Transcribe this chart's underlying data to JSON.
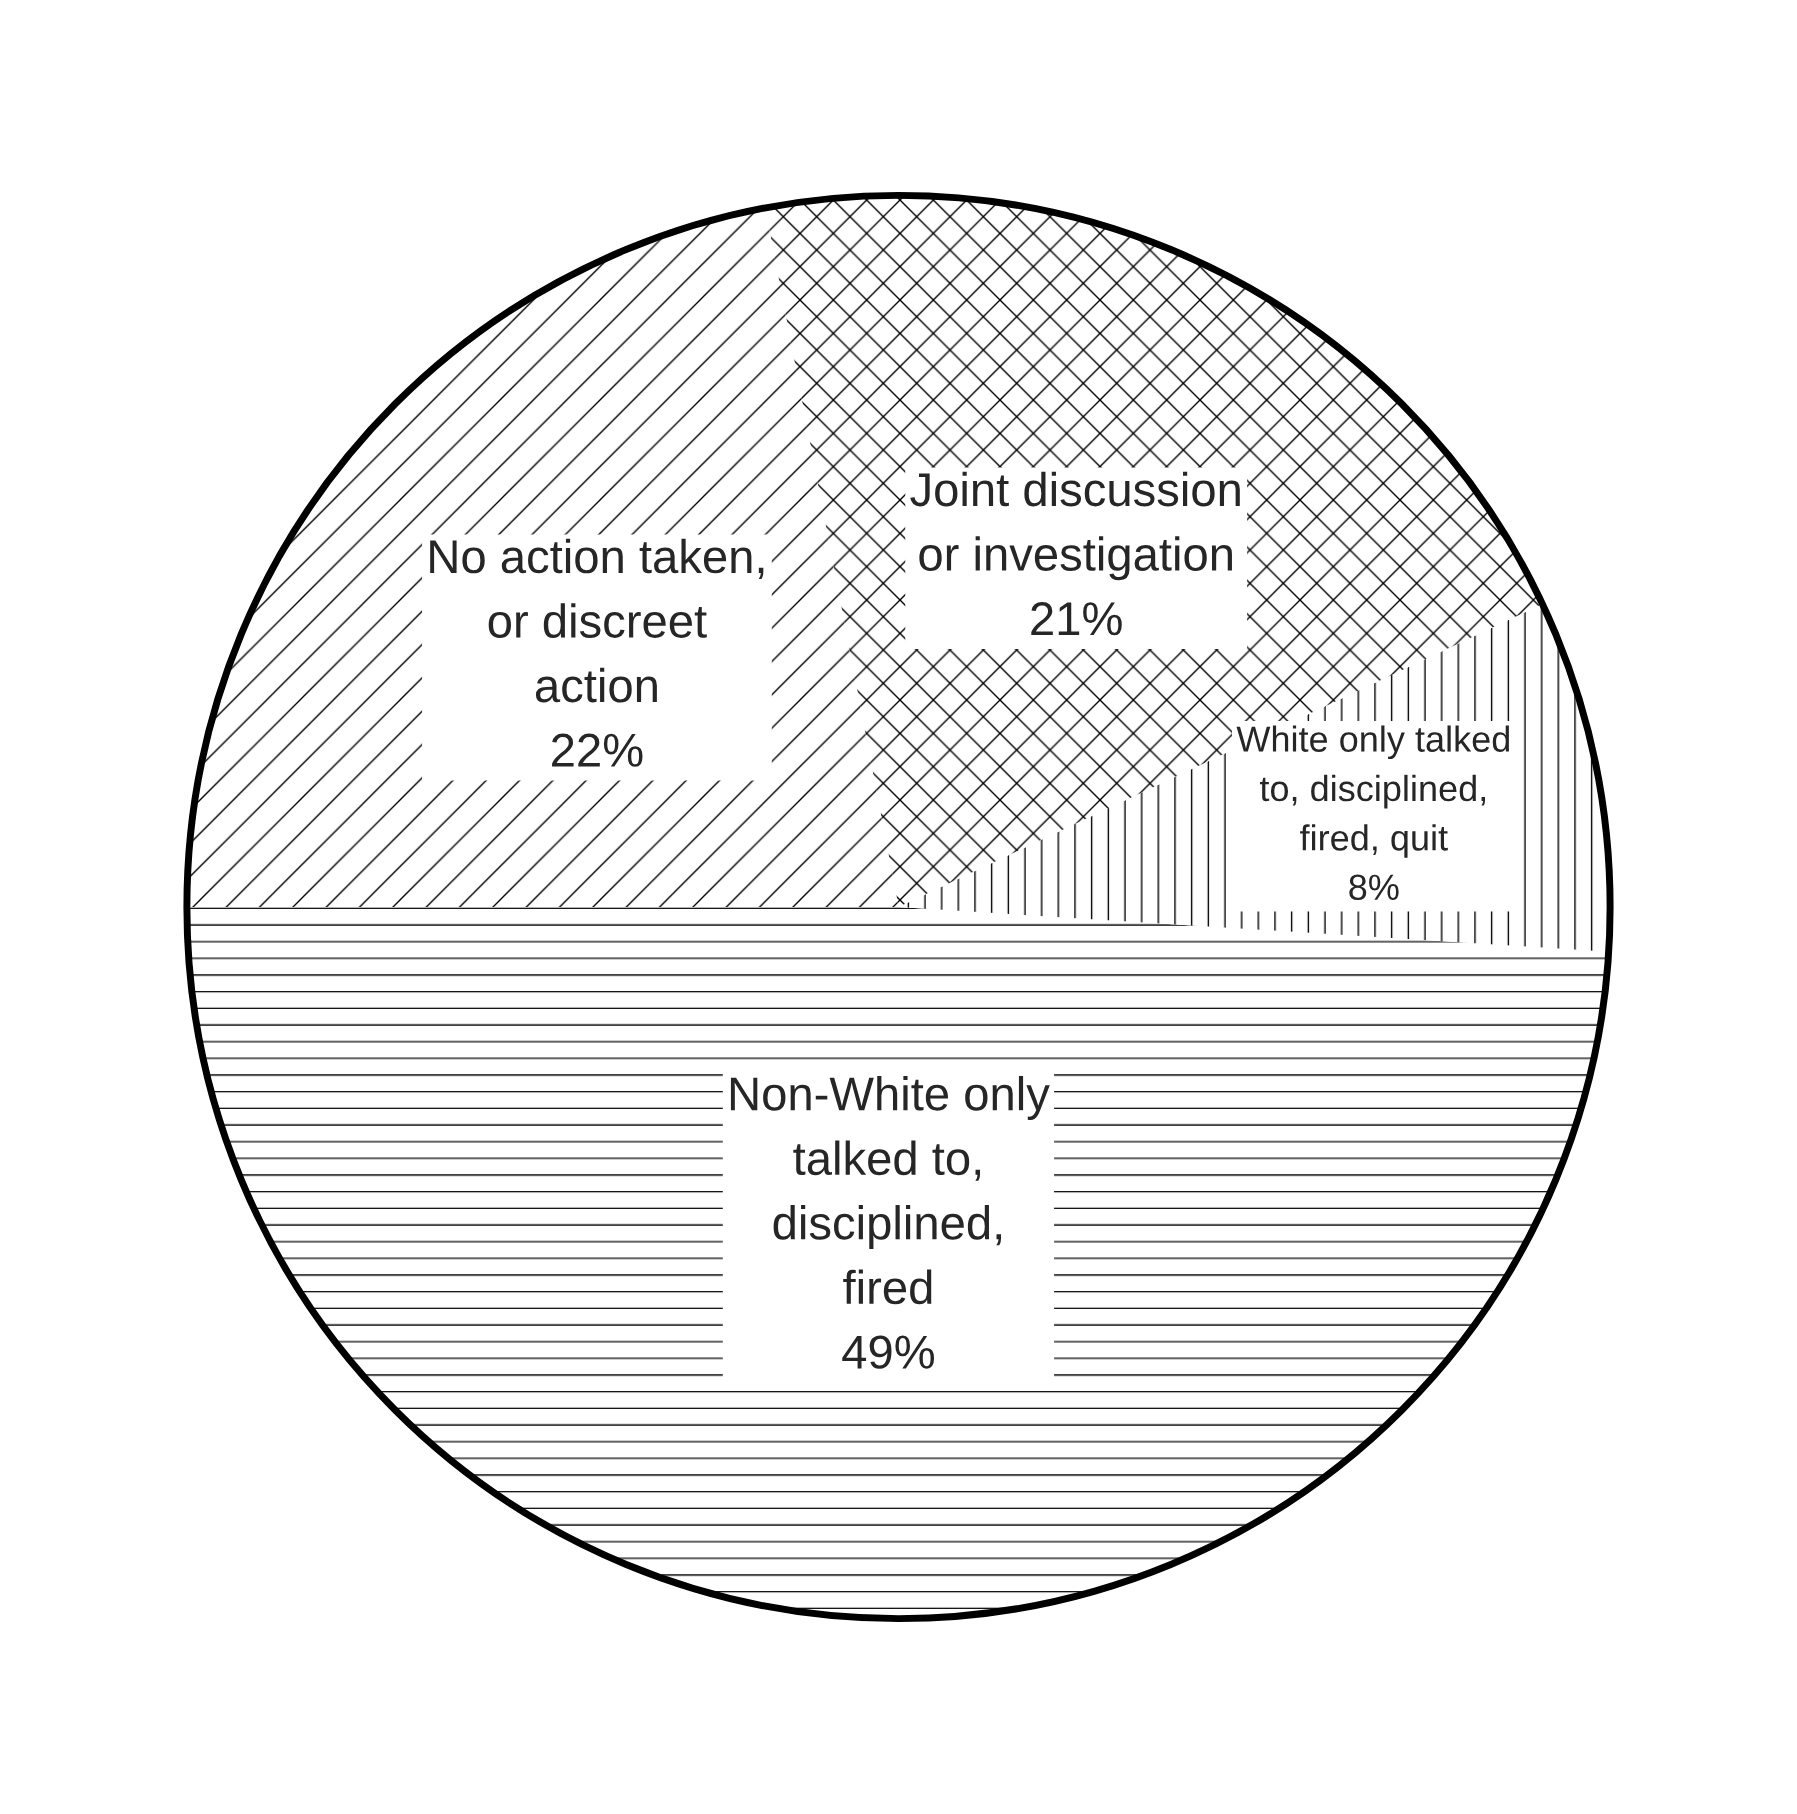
{
  "chart_data": {
    "type": "pie",
    "categories": [
      "Non-White only talked to, disciplined, fired",
      "White only talked to, disciplined, fired, quit",
      "Joint discussion or investigation",
      "No action taken, or discreet action"
    ],
    "values": [
      49,
      8,
      21,
      22
    ],
    "value_labels": [
      "49%",
      "8%",
      "21%",
      "22%"
    ],
    "colors": [
      "#ffffff",
      "#ffffff",
      "#ffffff",
      "#ffffff"
    ]
  }
}
